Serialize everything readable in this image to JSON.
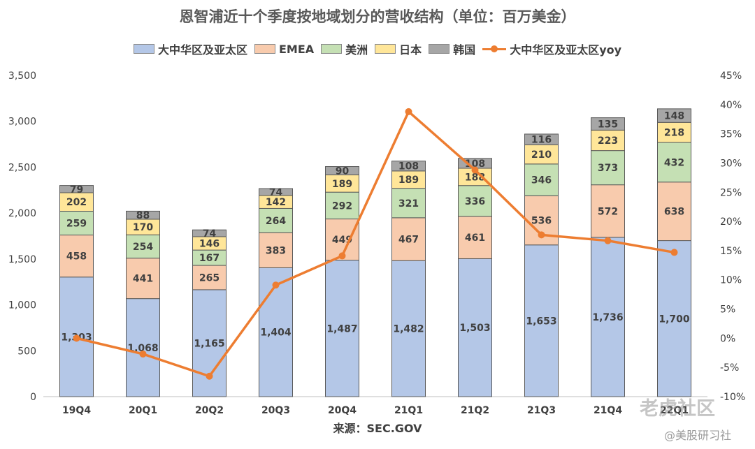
{
  "title": "恩智浦近十个季度按地域划分的营收结构（单位：百万美金）",
  "source": "来源：SEC.GOV",
  "watermark": {
    "line1": "老虎社区",
    "line2": "@美股研习社"
  },
  "chart_data": {
    "type": "bar",
    "stacked": true,
    "categories": [
      "19Q4",
      "20Q1",
      "20Q2",
      "20Q3",
      "20Q4",
      "21Q1",
      "21Q2",
      "21Q3",
      "21Q4",
      "22Q1"
    ],
    "series": [
      {
        "name": "大中华区及亚太区",
        "color": "#B4C7E7",
        "values": [
          1303,
          1068,
          1165,
          1404,
          1487,
          1482,
          1503,
          1653,
          1736,
          1700
        ]
      },
      {
        "name": "EMEA",
        "color": "#F8CBAD",
        "values": [
          458,
          441,
          265,
          383,
          449,
          467,
          461,
          536,
          572,
          638
        ]
      },
      {
        "name": "美洲",
        "color": "#C5E0B4",
        "values": [
          259,
          254,
          167,
          264,
          292,
          321,
          336,
          346,
          373,
          432
        ]
      },
      {
        "name": "日本",
        "color": "#FFE699",
        "values": [
          202,
          170,
          146,
          142,
          189,
          189,
          188,
          210,
          223,
          218
        ]
      },
      {
        "name": "韩国",
        "color": "#A6A6A6",
        "values": [
          79,
          88,
          74,
          74,
          90,
          108,
          108,
          116,
          135,
          148
        ]
      }
    ],
    "line_series": {
      "name": "大中华区及亚太区yoy",
      "color": "#ED7D31",
      "axis": "right",
      "values": [
        0.0,
        -2.7,
        -6.5,
        9.1,
        14.1,
        38.8,
        28.8,
        17.7,
        16.7,
        14.7
      ]
    },
    "y_left": {
      "min": 0,
      "max": 3500,
      "ticks": [
        "0",
        "500",
        "1,000",
        "1,500",
        "2,000",
        "2,500",
        "3,000",
        "3,500"
      ]
    },
    "y_right": {
      "min": -10,
      "max": 45,
      "ticks": [
        "-10%",
        "-5%",
        "0%",
        "5%",
        "10%",
        "15%",
        "20%",
        "25%",
        "30%",
        "35%",
        "40%",
        "45%"
      ]
    },
    "legend_position": "top",
    "grid": false
  }
}
